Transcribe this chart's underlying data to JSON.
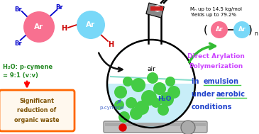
{
  "bg_color": "#ffffff",
  "ar_pink_color": "#f87090",
  "ar_blue_color": "#78d8f8",
  "flask_liquid_color": "#c8eef8",
  "flask_bubble_color": "#44cc44",
  "box_color": "#ff6600",
  "box_fill_color": "#fff8ee",
  "box_text_color": "#7b4f00",
  "box_text": "Significant\nreduction of\norganic waste",
  "ratio_text": "H₂O: p-cymene\n= 9:1 (v:v)",
  "ratio_color": "#228822",
  "water_label": "H₂O",
  "pcymene_label": "p-cymene",
  "air_label": "air",
  "mn_text": "Mₙ up to 14.5 kg/mol\nYields up to 79.2%",
  "title1": "Direct Arylation",
  "title2": "Polymerization",
  "title_color": "#cc44ff",
  "blue_text_color": "#2244cc",
  "underline_color": "#44cc44",
  "red_dot_color": "#dd0000",
  "green_arrow_color": "#33bb33",
  "hotplate_color": "#cccccc",
  "stopper_color": "#888888",
  "stopper_red": "#cc2222",
  "br_color": "#0000cc",
  "h_color": "#cc0000"
}
